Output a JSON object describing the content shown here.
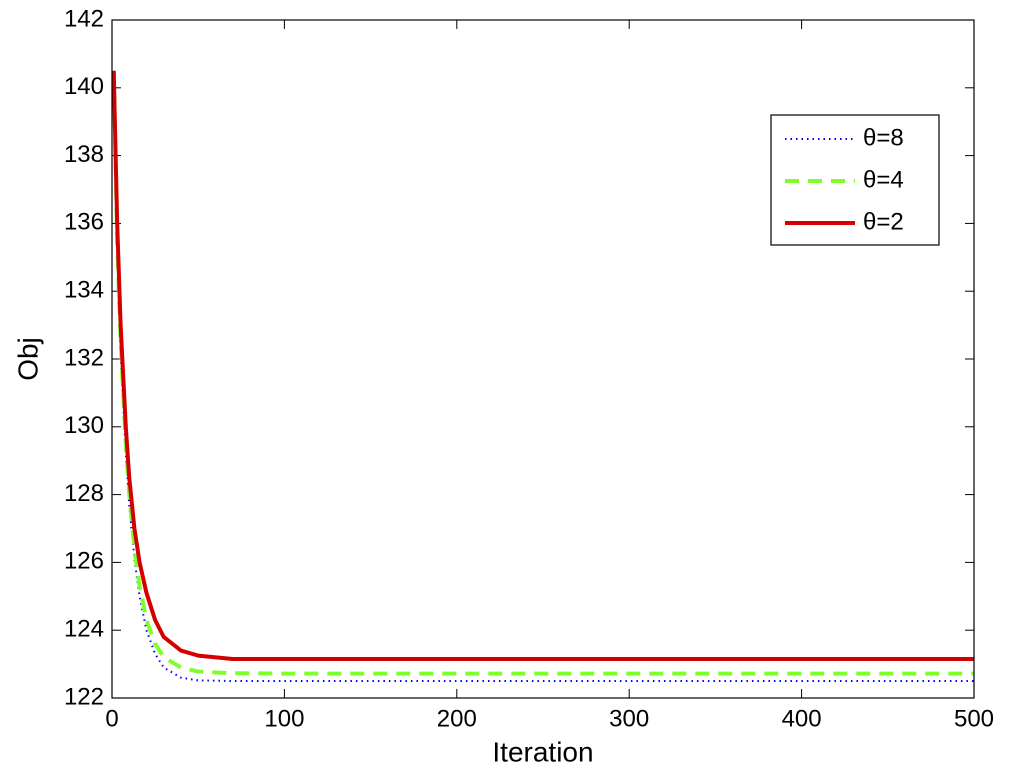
{
  "chart_data": {
    "type": "line",
    "xlabel": "Iteration",
    "ylabel": "Obj",
    "x": [
      1,
      3,
      5,
      8,
      10,
      13,
      16,
      20,
      25,
      30,
      40,
      50,
      70,
      100,
      200,
      300,
      400,
      500
    ],
    "series": [
      {
        "name": "θ=8",
        "color": "#0000ff",
        "line_style": "dotted",
        "values": [
          140.5,
          135.3,
          132.2,
          129.2,
          127.7,
          126.1,
          125.0,
          124.0,
          123.3,
          122.9,
          122.6,
          122.52,
          122.5,
          122.5,
          122.5,
          122.5,
          122.5,
          122.5
        ]
      },
      {
        "name": "θ=4",
        "color": "#7fff2a",
        "line_style": "dashed",
        "values": [
          140.5,
          135.5,
          132.5,
          129.5,
          128.0,
          126.4,
          125.3,
          124.3,
          123.6,
          123.2,
          122.9,
          122.78,
          122.73,
          122.72,
          122.72,
          122.72,
          122.72,
          122.72
        ]
      },
      {
        "name": "θ=2",
        "color": "#d40000",
        "line_style": "solid",
        "values": [
          140.5,
          136.0,
          133.0,
          130.0,
          128.5,
          127.0,
          126.0,
          125.1,
          124.3,
          123.8,
          123.4,
          123.25,
          123.15,
          123.15,
          123.15,
          123.15,
          123.15,
          123.15
        ]
      }
    ],
    "xlim": [
      0,
      500
    ],
    "xticks": [
      0,
      100,
      200,
      300,
      400,
      500
    ],
    "ylim": [
      122,
      142
    ],
    "yticks": [
      122,
      124,
      126,
      128,
      130,
      132,
      134,
      136,
      138,
      140,
      142
    ],
    "grid": false,
    "legend": "upper right"
  }
}
